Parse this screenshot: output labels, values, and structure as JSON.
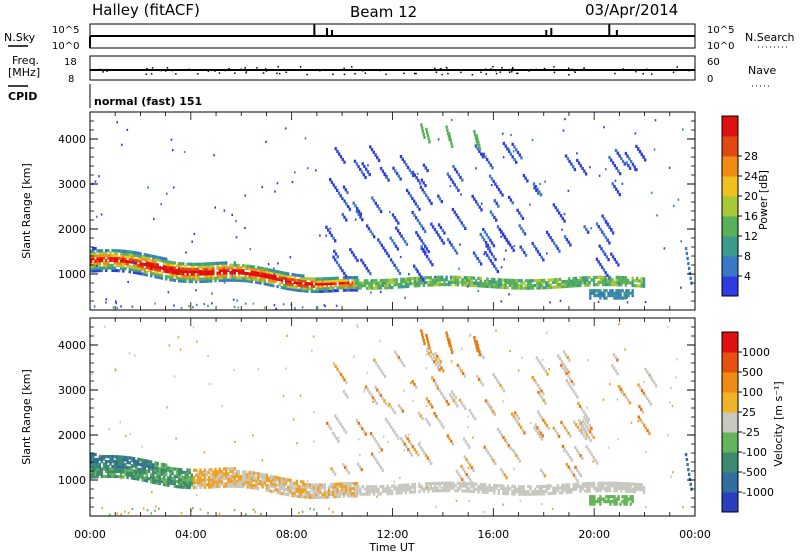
{
  "header": {
    "station": "Halley (fitACF)",
    "beam": "Beam 12",
    "date": "03/Apr/2014"
  },
  "sky_panel": {
    "left_label": "N.Sky",
    "right_label": "N.Search",
    "left_ticks": [
      "10^5",
      "10^0"
    ],
    "right_ticks": [
      "10^5",
      "10^0"
    ]
  },
  "freq_panel": {
    "left_label_line1": "Freq.",
    "left_label_line2": "[MHz]",
    "right_label": "Nave",
    "left_ticks": [
      "18",
      "8"
    ],
    "right_ticks": [
      "60",
      "0"
    ]
  },
  "cpid": {
    "label": "CPID",
    "value": "normal (fast) 151"
  },
  "chart_data": [
    {
      "type": "heatmap",
      "title": "",
      "ylabel": "Slant Range [km]",
      "xlabel": "",
      "x_ticks": [
        "00:00",
        "04:00",
        "08:00",
        "12:00",
        "16:00",
        "20:00",
        "00:00"
      ],
      "y_ticks": [
        "1000",
        "2000",
        "3000",
        "4000"
      ],
      "ylim": [
        200,
        4600
      ],
      "xlim_hours": [
        0,
        24
      ],
      "colorbar": {
        "label": "Power [dB]",
        "ticks": [
          "4",
          "8",
          "12",
          "16",
          "20",
          "24",
          "28"
        ],
        "colors": [
          "#2d3be0",
          "#3c78c8",
          "#3a9a8c",
          "#58b058",
          "#a8c838",
          "#f0c020",
          "#f08c14",
          "#e04a10",
          "#e01010"
        ]
      }
    },
    {
      "type": "heatmap",
      "title": "",
      "ylabel": "Slant Range [km]",
      "xlabel": "Time UT",
      "x_ticks": [
        "00:00",
        "04:00",
        "08:00",
        "12:00",
        "16:00",
        "20:00",
        "00:00"
      ],
      "y_ticks": [
        "1000",
        "2000",
        "3000",
        "4000"
      ],
      "ylim": [
        200,
        4600
      ],
      "xlim_hours": [
        0,
        24
      ],
      "colorbar": {
        "label": "Velocity [m s⁻¹]",
        "ticks": [
          "1000",
          "500",
          "100",
          "25",
          "-25",
          "-100",
          "-500",
          "-1000"
        ],
        "colors": [
          "#2840c0",
          "#2f6e9e",
          "#3e8a70",
          "#64b45a",
          "#c8c8c0",
          "#f0b428",
          "#f08c14",
          "#e85010",
          "#e01010"
        ]
      }
    }
  ]
}
